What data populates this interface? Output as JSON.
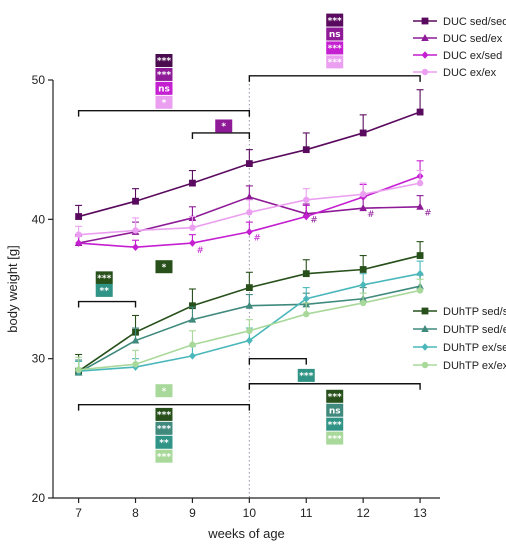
{
  "chart_data": {
    "type": "line",
    "xlabel": "weeks of age",
    "ylabel": "body weight [g]",
    "x": [
      7,
      8,
      9,
      10,
      11,
      12,
      13
    ],
    "xlim": [
      6.55,
      13.35
    ],
    "ylim": [
      20,
      50
    ],
    "yticks": [
      20,
      30,
      40,
      50
    ],
    "reference_line_x": 10,
    "series": [
      {
        "name": "DUC sed/sed",
        "color": "#5a0a5e",
        "marker": "square",
        "values": [
          40.2,
          41.3,
          42.6,
          44.0,
          45.0,
          46.2,
          47.7
        ],
        "err": [
          0.8,
          0.9,
          0.9,
          1.0,
          1.2,
          1.3,
          1.6
        ]
      },
      {
        "name": "DUC sed/ex",
        "color": "#8e1a97",
        "marker": "triangle",
        "values": [
          38.3,
          39.1,
          40.1,
          41.6,
          40.4,
          40.8,
          40.9
        ],
        "err": [
          0.6,
          0.7,
          0.8,
          0.8,
          0.7,
          0.8,
          0.8
        ]
      },
      {
        "name": "DUC ex/sed",
        "color": "#c41fd1",
        "marker": "diamond",
        "values": [
          38.3,
          38.0,
          38.3,
          39.1,
          40.2,
          41.6,
          43.1
        ],
        "err": [
          0.5,
          0.5,
          0.6,
          0.7,
          0.8,
          0.9,
          1.1
        ]
      },
      {
        "name": "DUC ex/ex",
        "color": "#eb9ff0",
        "marker": "circle",
        "values": [
          38.9,
          39.2,
          39.4,
          40.5,
          41.4,
          41.8,
          42.6
        ],
        "err": [
          0.6,
          0.9,
          0.8,
          0.9,
          0.8,
          0.8,
          0.9
        ]
      },
      {
        "name": "DUhTP sed/sed",
        "color": "#27501b",
        "marker": "square",
        "values": [
          29.1,
          31.9,
          33.8,
          35.1,
          36.1,
          36.4,
          37.4
        ],
        "err": [
          1.2,
          1.2,
          1.2,
          1.1,
          1.0,
          1.0,
          1.0
        ]
      },
      {
        "name": "DUhTP sed/ex",
        "color": "#3f8a7d",
        "marker": "triangle",
        "values": [
          29.0,
          31.3,
          32.8,
          33.8,
          33.9,
          34.3,
          35.2
        ],
        "err": [
          0.9,
          0.9,
          0.9,
          0.8,
          0.8,
          0.8,
          0.8
        ]
      },
      {
        "name": "DUhTP ex/sed",
        "color": "#4ab7bb",
        "marker": "diamond",
        "values": [
          29.1,
          29.4,
          30.2,
          31.3,
          34.3,
          35.3,
          36.1
        ],
        "err": [
          0.7,
          0.6,
          0.7,
          0.9,
          0.8,
          0.8,
          0.9
        ]
      },
      {
        "name": "DUhTP ex/ex",
        "color": "#a8d89a",
        "marker": "circle",
        "values": [
          29.2,
          29.6,
          31.0,
          32.0,
          33.2,
          34.0,
          34.9
        ],
        "err": [
          0.9,
          1.0,
          1.0,
          0.8,
          0.8,
          0.7,
          0.8
        ]
      }
    ],
    "hash_marks": [
      {
        "series": 1,
        "x": 11,
        "y": 40.2
      },
      {
        "series": 1,
        "x": 12,
        "y": 40.6
      },
      {
        "series": 1,
        "x": 13,
        "y": 40.7
      },
      {
        "series": 2,
        "x": 9,
        "y": 38.0
      },
      {
        "series": 2,
        "x": 10,
        "y": 38.9
      }
    ],
    "brackets": [
      {
        "x1": 7,
        "x2": 10,
        "y": 47.8
      },
      {
        "x1": 9,
        "x2": 10,
        "y": 46.2
      },
      {
        "x1": 10,
        "x2": 13,
        "y": 50.3
      },
      {
        "x1": 7,
        "x2": 8,
        "y": 34.1
      },
      {
        "x1": 10,
        "x2": 11,
        "y": 30.0
      },
      {
        "x1": 10,
        "x2": 13,
        "y": 28.2
      },
      {
        "x1": 7,
        "x2": 10,
        "y": 26.7
      }
    ],
    "significance_badges": [
      {
        "x": 8.5,
        "y": 51.4,
        "label": "***",
        "color": "#4a0c4e"
      },
      {
        "x": 8.5,
        "y": 50.4,
        "label": "***",
        "color": "#8e1a97"
      },
      {
        "x": 8.5,
        "y": 49.4,
        "label": "ns",
        "color": "#c41fd1"
      },
      {
        "x": 8.5,
        "y": 48.4,
        "label": "*",
        "color": "#eb9ff0"
      },
      {
        "x": 9.55,
        "y": 46.7,
        "label": "*",
        "color": "#8e1a97"
      },
      {
        "x": 11.5,
        "y": 54.3,
        "label": "***",
        "color": "#5a0a5e"
      },
      {
        "x": 11.5,
        "y": 53.3,
        "label": "ns",
        "color": "#8e1a97"
      },
      {
        "x": 11.5,
        "y": 52.3,
        "label": "***",
        "color": "#c41fd1"
      },
      {
        "x": 11.5,
        "y": 51.3,
        "label": "***",
        "color": "#eb9ff0"
      },
      {
        "x": 7.45,
        "y": 35.8,
        "label": "***",
        "color": "#27501b"
      },
      {
        "x": 7.45,
        "y": 34.9,
        "label": "**",
        "color": "#2f9385"
      },
      {
        "x": 8.5,
        "y": 36.6,
        "label": "*",
        "color": "#27501b"
      },
      {
        "x": 11.0,
        "y": 28.8,
        "label": "***",
        "color": "#2f9385"
      },
      {
        "x": 8.5,
        "y": 27.7,
        "label": "*",
        "color": "#a8d89a"
      },
      {
        "x": 8.5,
        "y": 26.0,
        "label": "***",
        "color": "#27501b"
      },
      {
        "x": 8.5,
        "y": 25.0,
        "label": "***",
        "color": "#3f8a7d"
      },
      {
        "x": 8.5,
        "y": 24.0,
        "label": "**",
        "color": "#2f9385"
      },
      {
        "x": 8.5,
        "y": 23.0,
        "label": "***",
        "color": "#a8d89a"
      },
      {
        "x": 11.5,
        "y": 27.3,
        "label": "***",
        "color": "#27501b"
      },
      {
        "x": 11.5,
        "y": 26.3,
        "label": "ns",
        "color": "#3f8a7d"
      },
      {
        "x": 11.5,
        "y": 25.3,
        "label": "***",
        "color": "#2f9385"
      },
      {
        "x": 11.5,
        "y": 24.3,
        "label": "***",
        "color": "#a8d89a"
      }
    ],
    "legend_groups": [
      {
        "placement": "top-right",
        "series": [
          0,
          1,
          2,
          3
        ]
      },
      {
        "placement": "center-right",
        "series": [
          4,
          5,
          6,
          7
        ]
      }
    ],
    "hash_symbol": "#",
    "grid": false
  }
}
